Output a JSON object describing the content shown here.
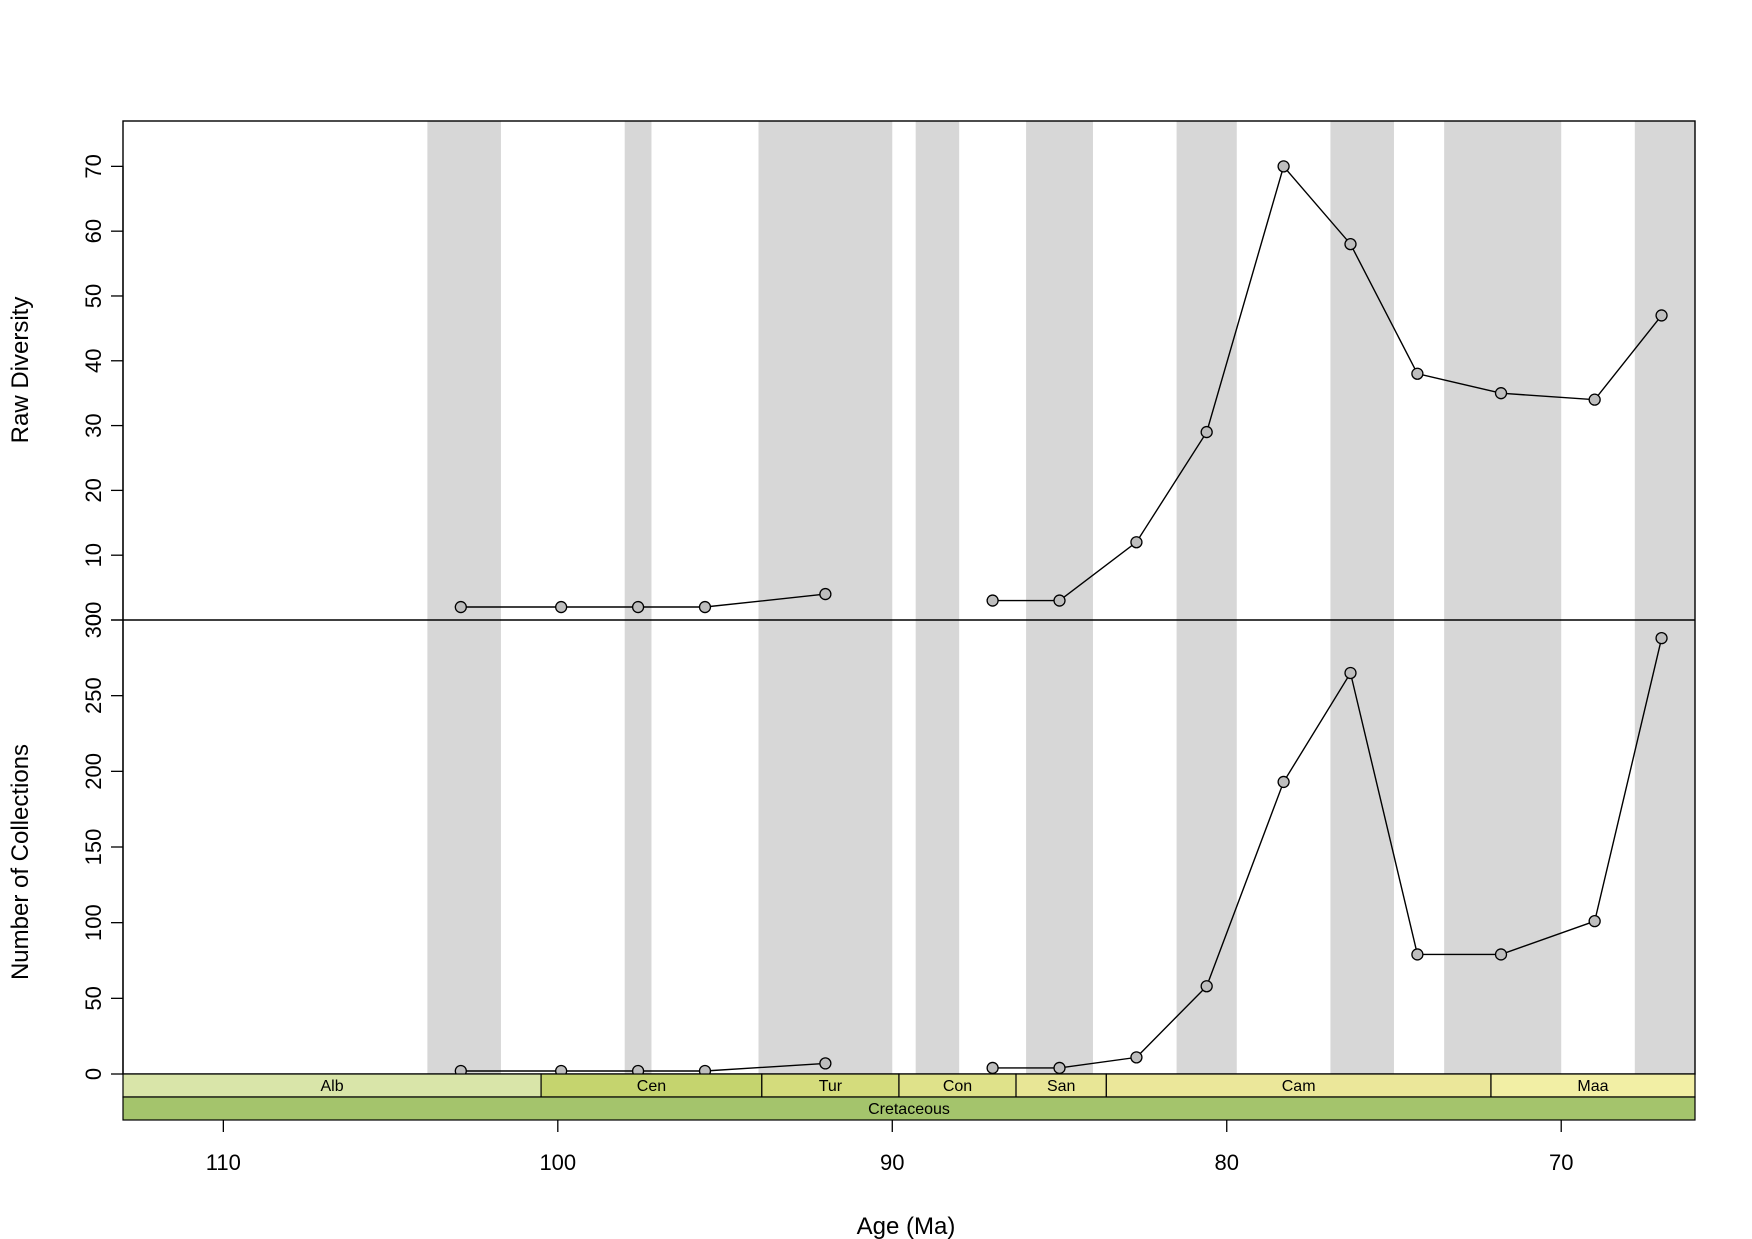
{
  "chart_data": {
    "type": "line",
    "x_label": "Age (Ma)",
    "x_ticks": [
      110,
      100,
      90,
      80,
      70
    ],
    "xlim": [
      113,
      66
    ],
    "shaded_bands": [
      [
        103.9,
        101.7
      ],
      [
        98.0,
        97.2
      ],
      [
        94.0,
        90.0
      ],
      [
        89.3,
        88.0
      ],
      [
        86.0,
        84.0
      ],
      [
        81.5,
        79.7
      ],
      [
        76.9,
        75.0
      ],
      [
        73.5,
        70.0
      ],
      [
        67.8,
        66.0
      ]
    ],
    "panels": [
      {
        "name": "raw-diversity",
        "ylabel": "Raw Diversity",
        "ylim": [
          0,
          77
        ],
        "y_ticks": [
          0,
          10,
          20,
          30,
          40,
          50,
          60,
          70
        ],
        "segments": [
          {
            "x": [
              102.9,
              99.9,
              97.6,
              95.6,
              92.0
            ],
            "y": [
              2,
              2,
              2,
              2,
              4
            ]
          },
          {
            "x": [
              87.0,
              85.0,
              82.7,
              80.6,
              78.3,
              76.3,
              74.3,
              71.8,
              69.0,
              67.0
            ],
            "y": [
              3,
              3,
              12,
              29,
              70,
              58,
              38,
              35,
              34,
              47
            ]
          }
        ]
      },
      {
        "name": "number-of-collections",
        "ylabel": "Number of Collections",
        "ylim": [
          0,
          300
        ],
        "y_ticks": [
          0,
          50,
          100,
          150,
          200,
          250,
          300
        ],
        "segments": [
          {
            "x": [
              102.9,
              99.9,
              97.6,
              95.6,
              92.0
            ],
            "y": [
              2,
              2,
              2,
              2,
              7
            ]
          },
          {
            "x": [
              87.0,
              85.0,
              82.7,
              80.6,
              78.3,
              76.3,
              74.3,
              71.8,
              69.0,
              67.0
            ],
            "y": [
              4,
              4,
              11,
              58,
              193,
              265,
              79,
              79,
              101,
              288
            ]
          }
        ]
      }
    ],
    "timescale": {
      "stages": [
        {
          "label": "Alb",
          "from": 113.0,
          "to": 100.5,
          "color": "#d9e5a9"
        },
        {
          "label": "Cen",
          "from": 100.5,
          "to": 93.9,
          "color": "#c5d46e"
        },
        {
          "label": "Tur",
          "from": 93.9,
          "to": 89.8,
          "color": "#d4dc7c"
        },
        {
          "label": "Con",
          "from": 89.8,
          "to": 86.3,
          "color": "#dfe28a"
        },
        {
          "label": "San",
          "from": 86.3,
          "to": 83.6,
          "color": "#e8e696"
        },
        {
          "label": "Cam",
          "from": 83.6,
          "to": 72.1,
          "color": "#ebe79a"
        },
        {
          "label": "Maa",
          "from": 72.1,
          "to": 66.0,
          "color": "#f2efa5"
        }
      ],
      "period": {
        "label": "Cretaceous",
        "from": 113.0,
        "to": 66.0,
        "color": "#a4c46c"
      }
    },
    "colors": {
      "band": "#d7d7d7",
      "point_fill": "#bebebe",
      "line": "#000000"
    }
  }
}
